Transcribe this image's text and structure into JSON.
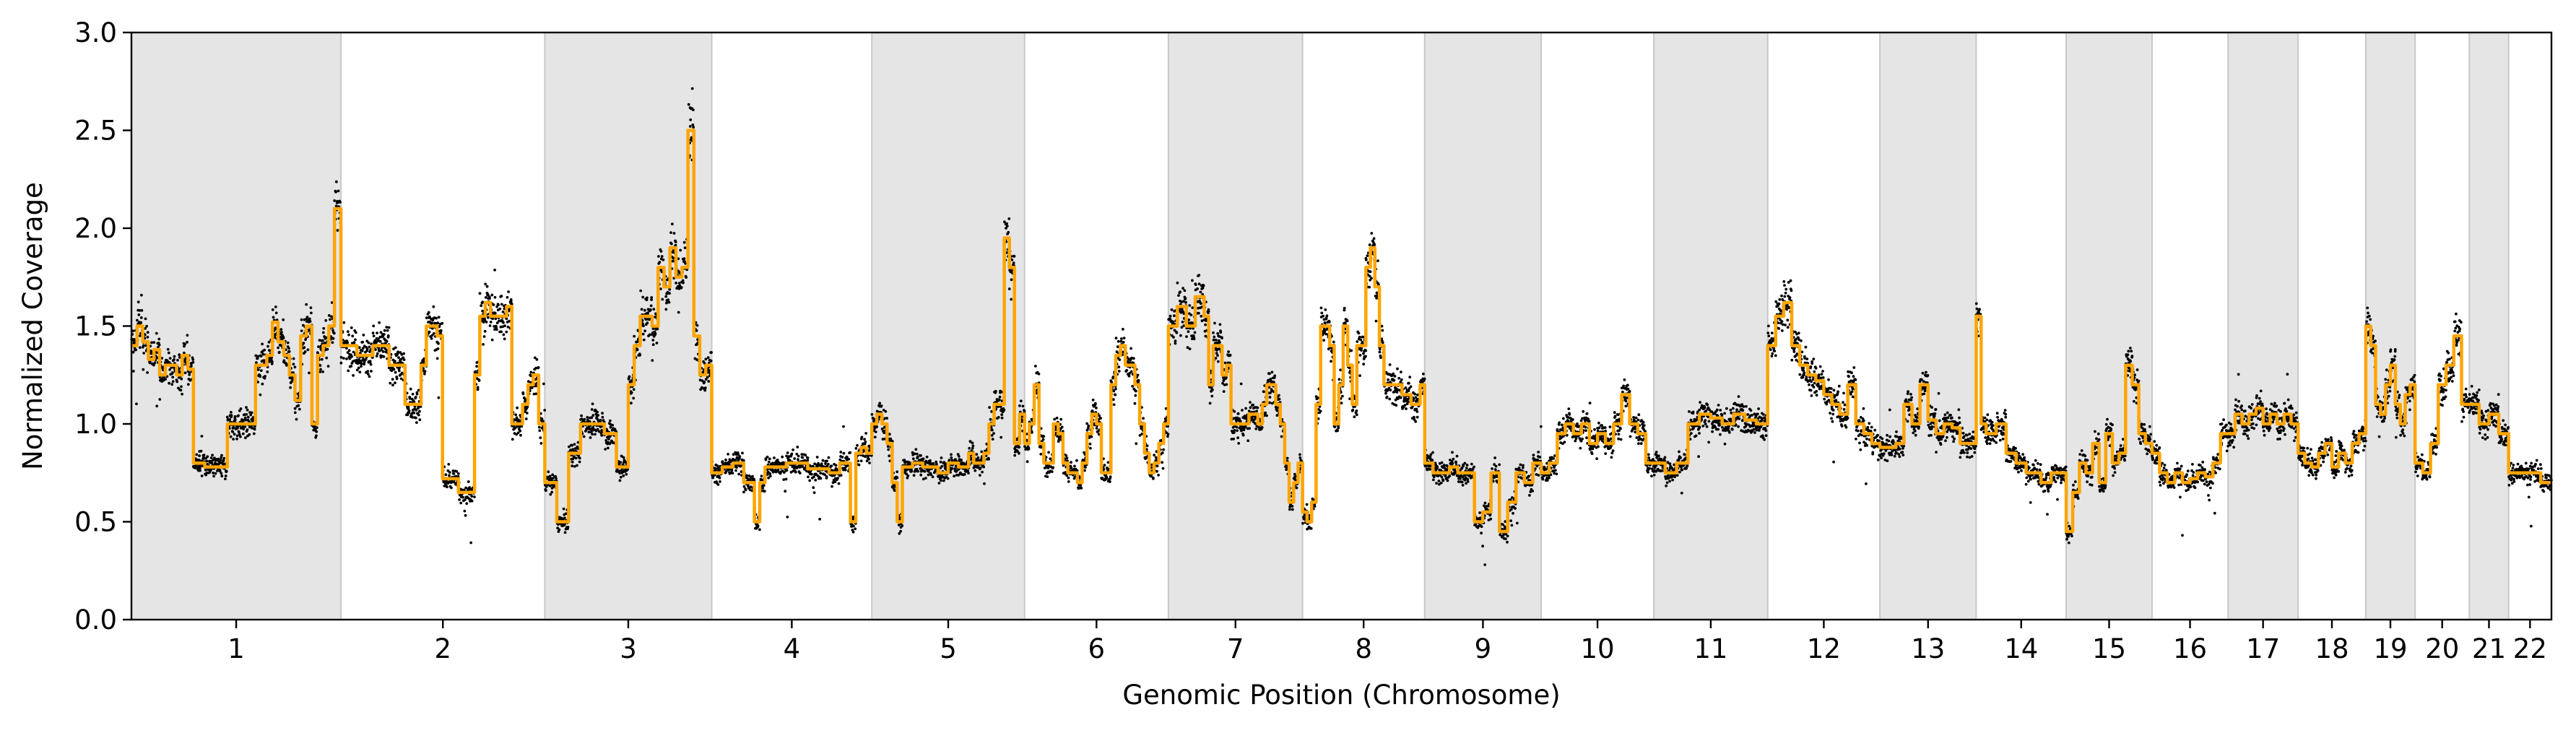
{
  "chart_data": {
    "type": "scatter",
    "xlabel": "Genomic Position (Chromosome)",
    "ylabel": "Normalized Coverage",
    "ylim": [
      0.0,
      3.0
    ],
    "yticks": [
      "0.0",
      "0.5",
      "1.0",
      "1.5",
      "2.0",
      "2.5",
      "3.0"
    ],
    "grid": false,
    "legend": "none",
    "colors": {
      "points": "#000000",
      "segments": "#ffa500",
      "shaded_band": "#e5e5e5",
      "band_edge": "#c8c8c8"
    },
    "chromosomes": [
      {
        "label": "1",
        "start": 0.0,
        "end": 248.9,
        "shaded": true
      },
      {
        "label": "2",
        "start": 248.9,
        "end": 491.1,
        "shaded": false
      },
      {
        "label": "3",
        "start": 491.1,
        "end": 689.4,
        "shaded": true
      },
      {
        "label": "4",
        "start": 689.4,
        "end": 879.6,
        "shaded": false
      },
      {
        "label": "5",
        "start": 879.6,
        "end": 1061.1,
        "shaded": true
      },
      {
        "label": "6",
        "start": 1061.1,
        "end": 1231.9,
        "shaded": false
      },
      {
        "label": "7",
        "start": 1231.9,
        "end": 1391.3,
        "shaded": true
      },
      {
        "label": "8",
        "start": 1391.3,
        "end": 1536.4,
        "shaded": false
      },
      {
        "label": "9",
        "start": 1536.4,
        "end": 1674.8,
        "shaded": true
      },
      {
        "label": "10",
        "start": 1674.8,
        "end": 1808.6,
        "shaded": false
      },
      {
        "label": "11",
        "start": 1808.6,
        "end": 1943.9,
        "shaded": true
      },
      {
        "label": "12",
        "start": 1943.9,
        "end": 2077.2,
        "shaded": false
      },
      {
        "label": "13",
        "start": 2077.2,
        "end": 2191.6,
        "shaded": true
      },
      {
        "label": "14",
        "start": 2191.6,
        "end": 2298.5,
        "shaded": false
      },
      {
        "label": "15",
        "start": 2298.5,
        "end": 2400.5,
        "shaded": true
      },
      {
        "label": "16",
        "start": 2400.5,
        "end": 2490.8,
        "shaded": false
      },
      {
        "label": "17",
        "start": 2490.8,
        "end": 2574.0,
        "shaded": true
      },
      {
        "label": "18",
        "start": 2574.0,
        "end": 2654.4,
        "shaded": false
      },
      {
        "label": "19",
        "start": 2654.4,
        "end": 2713.0,
        "shaded": true
      },
      {
        "label": "20",
        "start": 2713.0,
        "end": 2777.4,
        "shaded": false
      },
      {
        "label": "21",
        "start": 2777.4,
        "end": 2824.1,
        "shaded": true
      },
      {
        "label": "22",
        "start": 2824.1,
        "end": 2875.0,
        "shaded": false
      }
    ],
    "segments": [
      [
        0.0,
        1.4
      ],
      [
        6.7,
        1.5
      ],
      [
        13.4,
        1.42
      ],
      [
        20.1,
        1.33
      ],
      [
        26.8,
        1.38
      ],
      [
        33.5,
        1.25
      ],
      [
        40.2,
        1.3
      ],
      [
        53.6,
        1.25
      ],
      [
        60.3,
        1.35
      ],
      [
        67.0,
        1.28
      ],
      [
        73.7,
        0.8
      ],
      [
        87.1,
        0.78
      ],
      [
        113.9,
        1.0
      ],
      [
        147.4,
        1.3
      ],
      [
        160.8,
        1.35
      ],
      [
        167.5,
        1.52
      ],
      [
        174.2,
        1.42
      ],
      [
        180.9,
        1.35
      ],
      [
        187.6,
        1.25
      ],
      [
        194.3,
        1.12
      ],
      [
        201.0,
        1.45
      ],
      [
        207.7,
        1.5
      ],
      [
        214.4,
        1.0
      ],
      [
        221.1,
        1.35
      ],
      [
        227.8,
        1.4
      ],
      [
        234.5,
        1.5
      ],
      [
        241.2,
        2.1
      ],
      [
        248.9,
        1.4
      ],
      [
        267.9,
        1.35
      ],
      [
        286.9,
        1.4
      ],
      [
        306.0,
        1.3
      ],
      [
        325.0,
        1.1
      ],
      [
        344.1,
        1.3
      ],
      [
        350.4,
        1.5
      ],
      [
        363.1,
        1.45
      ],
      [
        369.5,
        0.72
      ],
      [
        388.5,
        0.65
      ],
      [
        407.6,
        1.25
      ],
      [
        413.9,
        1.55
      ],
      [
        420.3,
        1.62
      ],
      [
        426.6,
        1.55
      ],
      [
        445.7,
        1.6
      ],
      [
        452.0,
        1.0
      ],
      [
        464.7,
        1.1
      ],
      [
        471.1,
        1.2
      ],
      [
        477.4,
        1.25
      ],
      [
        483.8,
        1.0
      ],
      [
        491.1,
        0.7
      ],
      [
        505.3,
        0.5
      ],
      [
        519.4,
        0.85
      ],
      [
        533.6,
        1.0
      ],
      [
        561.9,
        0.95
      ],
      [
        576.1,
        0.78
      ],
      [
        590.3,
        1.2
      ],
      [
        597.3,
        1.4
      ],
      [
        604.4,
        1.55
      ],
      [
        618.6,
        1.5
      ],
      [
        625.7,
        1.8
      ],
      [
        632.7,
        1.7
      ],
      [
        639.8,
        1.9
      ],
      [
        646.9,
        1.75
      ],
      [
        654.0,
        1.8
      ],
      [
        661.1,
        2.5
      ],
      [
        668.2,
        1.45
      ],
      [
        675.2,
        1.25
      ],
      [
        682.3,
        1.3
      ],
      [
        689.4,
        0.75
      ],
      [
        702.0,
        0.78
      ],
      [
        714.7,
        0.8
      ],
      [
        727.4,
        0.7
      ],
      [
        740.1,
        0.5
      ],
      [
        746.4,
        0.7
      ],
      [
        752.7,
        0.78
      ],
      [
        778.1,
        0.8
      ],
      [
        803.4,
        0.77
      ],
      [
        828.8,
        0.75
      ],
      [
        841.5,
        0.8
      ],
      [
        854.2,
        0.5
      ],
      [
        860.5,
        0.85
      ],
      [
        866.9,
        0.88
      ],
      [
        873.2,
        0.85
      ],
      [
        879.6,
        1.0
      ],
      [
        885.6,
        1.05
      ],
      [
        891.7,
        1.0
      ],
      [
        897.7,
        0.9
      ],
      [
        903.8,
        0.7
      ],
      [
        909.8,
        0.5
      ],
      [
        915.9,
        0.78
      ],
      [
        928.0,
        0.8
      ],
      [
        940.1,
        0.78
      ],
      [
        958.2,
        0.75
      ],
      [
        970.3,
        0.8
      ],
      [
        982.4,
        0.78
      ],
      [
        994.5,
        0.85
      ],
      [
        1000.6,
        0.8
      ],
      [
        1012.7,
        0.85
      ],
      [
        1018.7,
        1.0
      ],
      [
        1024.8,
        1.1
      ],
      [
        1036.9,
        1.95
      ],
      [
        1043.0,
        1.8
      ],
      [
        1049.0,
        0.9
      ],
      [
        1055.1,
        1.05
      ],
      [
        1061.1,
        0.9
      ],
      [
        1066.8,
        1.0
      ],
      [
        1072.5,
        1.2
      ],
      [
        1078.2,
        0.9
      ],
      [
        1083.9,
        0.8
      ],
      [
        1095.3,
        1.0
      ],
      [
        1101.0,
        0.95
      ],
      [
        1106.7,
        0.8
      ],
      [
        1112.4,
        0.75
      ],
      [
        1123.8,
        0.7
      ],
      [
        1129.5,
        0.8
      ],
      [
        1135.2,
        0.95
      ],
      [
        1140.9,
        1.05
      ],
      [
        1146.6,
        1.0
      ],
      [
        1152.2,
        0.75
      ],
      [
        1163.6,
        1.2
      ],
      [
        1169.3,
        1.35
      ],
      [
        1175.0,
        1.4
      ],
      [
        1180.7,
        1.3
      ],
      [
        1192.1,
        1.2
      ],
      [
        1197.8,
        1.0
      ],
      [
        1203.5,
        0.85
      ],
      [
        1209.2,
        0.75
      ],
      [
        1214.9,
        0.8
      ],
      [
        1220.6,
        0.9
      ],
      [
        1226.3,
        1.0
      ],
      [
        1231.9,
        1.5
      ],
      [
        1242.6,
        1.6
      ],
      [
        1253.2,
        1.5
      ],
      [
        1263.8,
        1.65
      ],
      [
        1274.4,
        1.55
      ],
      [
        1279.8,
        1.2
      ],
      [
        1285.1,
        1.4
      ],
      [
        1295.7,
        1.25
      ],
      [
        1301.0,
        1.3
      ],
      [
        1306.3,
        1.0
      ],
      [
        1327.6,
        1.05
      ],
      [
        1338.2,
        1.0
      ],
      [
        1343.5,
        1.1
      ],
      [
        1348.8,
        1.2
      ],
      [
        1359.4,
        1.1
      ],
      [
        1364.8,
        1.0
      ],
      [
        1370.1,
        0.8
      ],
      [
        1375.4,
        0.6
      ],
      [
        1380.7,
        0.7
      ],
      [
        1386.0,
        0.8
      ],
      [
        1391.3,
        0.55
      ],
      [
        1396.7,
        0.5
      ],
      [
        1402.1,
        0.6
      ],
      [
        1407.4,
        1.1
      ],
      [
        1412.8,
        1.5
      ],
      [
        1423.5,
        1.4
      ],
      [
        1428.9,
        1.0
      ],
      [
        1434.3,
        1.2
      ],
      [
        1439.6,
        1.5
      ],
      [
        1445.0,
        1.3
      ],
      [
        1450.4,
        1.1
      ],
      [
        1455.8,
        1.4
      ],
      [
        1466.5,
        1.8
      ],
      [
        1471.9,
        1.9
      ],
      [
        1477.2,
        1.7
      ],
      [
        1482.6,
        1.4
      ],
      [
        1488.0,
        1.2
      ],
      [
        1509.5,
        1.15
      ],
      [
        1520.2,
        1.1
      ],
      [
        1531.0,
        1.2
      ],
      [
        1536.4,
        0.8
      ],
      [
        1546.3,
        0.75
      ],
      [
        1565.9,
        0.78
      ],
      [
        1575.8,
        0.75
      ],
      [
        1595.5,
        0.5
      ],
      [
        1605.4,
        0.55
      ],
      [
        1615.2,
        0.75
      ],
      [
        1625.1,
        0.45
      ],
      [
        1635.0,
        0.6
      ],
      [
        1644.9,
        0.75
      ],
      [
        1654.8,
        0.7
      ],
      [
        1664.9,
        0.8
      ],
      [
        1674.8,
        0.75
      ],
      [
        1684.3,
        0.8
      ],
      [
        1693.9,
        0.95
      ],
      [
        1703.4,
        1.0
      ],
      [
        1713.0,
        0.95
      ],
      [
        1722.6,
        1.0
      ],
      [
        1732.1,
        0.9
      ],
      [
        1741.7,
        0.95
      ],
      [
        1751.2,
        0.9
      ],
      [
        1760.8,
        1.0
      ],
      [
        1770.4,
        1.15
      ],
      [
        1779.9,
        1.0
      ],
      [
        1789.5,
        0.95
      ],
      [
        1799.1,
        0.8
      ],
      [
        1808.6,
        0.8
      ],
      [
        1822.1,
        0.75
      ],
      [
        1835.7,
        0.8
      ],
      [
        1849.2,
        1.0
      ],
      [
        1862.7,
        1.05
      ],
      [
        1876.2,
        1.03
      ],
      [
        1889.8,
        1.0
      ],
      [
        1903.3,
        1.05
      ],
      [
        1916.8,
        1.02
      ],
      [
        1930.4,
        1.0
      ],
      [
        1943.9,
        1.4
      ],
      [
        1953.4,
        1.55
      ],
      [
        1962.9,
        1.62
      ],
      [
        1972.4,
        1.4
      ],
      [
        1981.9,
        1.3
      ],
      [
        1991.5,
        1.25
      ],
      [
        2001.0,
        1.22
      ],
      [
        2010.5,
        1.15
      ],
      [
        2020.0,
        1.1
      ],
      [
        2029.5,
        1.05
      ],
      [
        2039.0,
        1.2
      ],
      [
        2048.6,
        1.0
      ],
      [
        2058.1,
        0.95
      ],
      [
        2067.6,
        0.9
      ],
      [
        2077.2,
        0.88
      ],
      [
        2096.2,
        0.9
      ],
      [
        2105.8,
        1.1
      ],
      [
        2115.3,
        1.0
      ],
      [
        2124.8,
        1.2
      ],
      [
        2134.3,
        1.02
      ],
      [
        2143.9,
        0.95
      ],
      [
        2153.4,
        1.0
      ],
      [
        2162.9,
        0.98
      ],
      [
        2172.5,
        0.9
      ],
      [
        2182.0,
        0.9
      ],
      [
        2191.6,
        1.55
      ],
      [
        2197.5,
        1.0
      ],
      [
        2203.4,
        0.95
      ],
      [
        2215.3,
        1.0
      ],
      [
        2227.2,
        0.85
      ],
      [
        2239.0,
        0.8
      ],
      [
        2250.9,
        0.75
      ],
      [
        2268.7,
        0.7
      ],
      [
        2280.6,
        0.75
      ],
      [
        2292.6,
        0.75
      ],
      [
        2298.5,
        0.45
      ],
      [
        2306.3,
        0.65
      ],
      [
        2314.2,
        0.8
      ],
      [
        2322.0,
        0.75
      ],
      [
        2329.9,
        0.9
      ],
      [
        2337.7,
        0.7
      ],
      [
        2345.6,
        0.95
      ],
      [
        2353.4,
        0.8
      ],
      [
        2361.3,
        0.85
      ],
      [
        2369.1,
        1.3
      ],
      [
        2377.0,
        1.2
      ],
      [
        2384.8,
        0.95
      ],
      [
        2392.7,
        0.9
      ],
      [
        2400.5,
        0.85
      ],
      [
        2409.5,
        0.75
      ],
      [
        2418.6,
        0.7
      ],
      [
        2427.6,
        0.75
      ],
      [
        2436.6,
        0.7
      ],
      [
        2445.7,
        0.72
      ],
      [
        2454.7,
        0.75
      ],
      [
        2463.8,
        0.73
      ],
      [
        2472.8,
        0.8
      ],
      [
        2481.8,
        0.95
      ],
      [
        2490.8,
        0.95
      ],
      [
        2499.1,
        1.05
      ],
      [
        2507.4,
        1.0
      ],
      [
        2515.8,
        1.05
      ],
      [
        2524.1,
        1.08
      ],
      [
        2532.4,
        1.0
      ],
      [
        2540.7,
        1.05
      ],
      [
        2549.0,
        1.0
      ],
      [
        2557.4,
        1.05
      ],
      [
        2565.7,
        1.0
      ],
      [
        2574.0,
        0.85
      ],
      [
        2582.0,
        0.8
      ],
      [
        2590.1,
        0.78
      ],
      [
        2598.1,
        0.85
      ],
      [
        2606.2,
        0.9
      ],
      [
        2614.2,
        0.78
      ],
      [
        2622.2,
        0.85
      ],
      [
        2630.3,
        0.8
      ],
      [
        2638.3,
        0.9
      ],
      [
        2646.4,
        0.95
      ],
      [
        2654.4,
        1.5
      ],
      [
        2660.3,
        1.4
      ],
      [
        2666.1,
        1.1
      ],
      [
        2672.0,
        1.05
      ],
      [
        2677.8,
        1.2
      ],
      [
        2683.7,
        1.3
      ],
      [
        2689.6,
        1.1
      ],
      [
        2695.4,
        1.0
      ],
      [
        2701.3,
        1.15
      ],
      [
        2707.1,
        1.2
      ],
      [
        2713.0,
        0.8
      ],
      [
        2722.2,
        0.75
      ],
      [
        2731.4,
        0.9
      ],
      [
        2740.6,
        1.2
      ],
      [
        2749.8,
        1.3
      ],
      [
        2759.0,
        1.45
      ],
      [
        2768.2,
        1.1
      ],
      [
        2777.4,
        1.1
      ],
      [
        2789.1,
        1.0
      ],
      [
        2800.8,
        1.05
      ],
      [
        2812.4,
        0.95
      ],
      [
        2824.1,
        0.75
      ],
      [
        2836.8,
        0.75
      ],
      [
        2849.5,
        0.75
      ],
      [
        2862.3,
        0.7
      ],
      [
        2875.0,
        0.7
      ]
    ]
  }
}
